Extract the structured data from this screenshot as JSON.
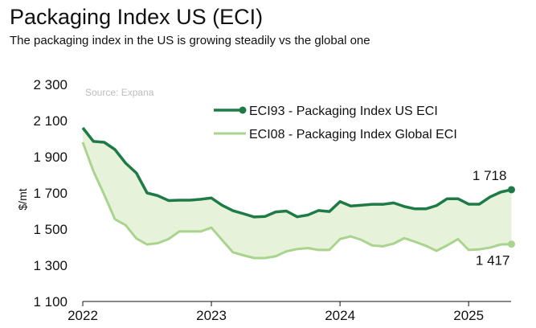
{
  "header": {
    "title": "Packaging Index US (ECI)",
    "subtitle": "The packaging index in the US is growing steadily vs the global one"
  },
  "colors": {
    "us": "#1e7b45",
    "global": "#a9d48e",
    "fill": "#e6f3da"
  },
  "chart_data": {
    "type": "line",
    "source": "Source: Expana",
    "ylabel": "$/mt",
    "xlabel": "",
    "ylim": [
      1100,
      2300
    ],
    "yticks": [
      "2 300",
      "2 100",
      "1 900",
      "1 700",
      "1 500",
      "1 300",
      "1 100"
    ],
    "ytick_values": [
      2300,
      2100,
      1900,
      1700,
      1500,
      1300,
      1100
    ],
    "xticks": [
      "2022",
      "2023",
      "2024",
      "2025"
    ],
    "xtick_values": [
      2022.0,
      2023.0,
      2024.0,
      2025.0
    ],
    "xlim": [
      2022.0,
      2025.33
    ],
    "grid": false,
    "legend_position": "top-right",
    "x": [
      2022.0,
      2022.083,
      2022.167,
      2022.25,
      2022.333,
      2022.417,
      2022.5,
      2022.583,
      2022.667,
      2022.75,
      2022.833,
      2022.917,
      2023.0,
      2023.083,
      2023.167,
      2023.25,
      2023.333,
      2023.417,
      2023.5,
      2023.583,
      2023.667,
      2023.75,
      2023.833,
      2023.917,
      2024.0,
      2024.083,
      2024.167,
      2024.25,
      2024.333,
      2024.417,
      2024.5,
      2024.583,
      2024.667,
      2024.75,
      2024.833,
      2024.917,
      2025.0,
      2025.083,
      2025.167,
      2025.25,
      2025.333
    ],
    "series": [
      {
        "name": "ECI93 - Packaging Index US ECI",
        "values": [
          2060,
          1985,
          1980,
          1940,
          1865,
          1810,
          1700,
          1685,
          1658,
          1660,
          1660,
          1665,
          1672,
          1632,
          1602,
          1585,
          1567,
          1570,
          1595,
          1600,
          1568,
          1578,
          1603,
          1597,
          1652,
          1628,
          1632,
          1637,
          1637,
          1645,
          1625,
          1612,
          1612,
          1630,
          1668,
          1668,
          1638,
          1638,
          1678,
          1705,
          1718
        ],
        "end_label": "1 718"
      },
      {
        "name": "ECI08 - Packaging Index Global ECI",
        "values": [
          1980,
          1820,
          1690,
          1555,
          1522,
          1448,
          1415,
          1422,
          1445,
          1487,
          1487,
          1487,
          1508,
          1440,
          1372,
          1355,
          1340,
          1340,
          1350,
          1377,
          1390,
          1395,
          1385,
          1385,
          1445,
          1460,
          1440,
          1410,
          1405,
          1420,
          1450,
          1430,
          1408,
          1380,
          1410,
          1445,
          1385,
          1388,
          1398,
          1415,
          1417
        ],
        "end_label": "1 417"
      }
    ]
  }
}
